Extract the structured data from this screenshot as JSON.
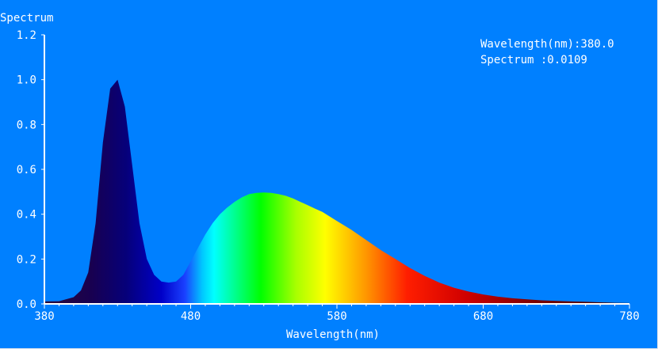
{
  "chart_data": {
    "type": "area",
    "title": "",
    "ylabel": "Spectrum",
    "xlabel": "Wavelength(nm)",
    "xlim": [
      380,
      780
    ],
    "ylim": [
      0,
      1.2
    ],
    "xticks": [
      "380",
      "480",
      "580",
      "680",
      "780"
    ],
    "yticks": [
      "0.0",
      "0.2",
      "0.4",
      "0.6",
      "0.8",
      "1.0",
      "1.2"
    ],
    "fill": "visible-spectrum gradient",
    "grid": false,
    "x": [
      380,
      390,
      400,
      405,
      410,
      415,
      420,
      425,
      430,
      435,
      440,
      445,
      450,
      455,
      460,
      465,
      470,
      475,
      480,
      485,
      490,
      495,
      500,
      505,
      510,
      515,
      520,
      525,
      530,
      535,
      540,
      545,
      550,
      555,
      560,
      565,
      570,
      575,
      580,
      590,
      600,
      610,
      620,
      630,
      640,
      650,
      660,
      670,
      680,
      690,
      700,
      710,
      720,
      730,
      740,
      750,
      760,
      770,
      780
    ],
    "y": [
      0.0109,
      0.012,
      0.03,
      0.06,
      0.14,
      0.36,
      0.72,
      0.96,
      1.0,
      0.88,
      0.62,
      0.36,
      0.2,
      0.13,
      0.1,
      0.095,
      0.1,
      0.13,
      0.19,
      0.25,
      0.31,
      0.36,
      0.4,
      0.43,
      0.455,
      0.475,
      0.49,
      0.495,
      0.497,
      0.495,
      0.49,
      0.482,
      0.47,
      0.455,
      0.44,
      0.425,
      0.41,
      0.39,
      0.37,
      0.33,
      0.285,
      0.24,
      0.2,
      0.16,
      0.125,
      0.095,
      0.072,
      0.055,
      0.042,
      0.032,
      0.025,
      0.02,
      0.016,
      0.013,
      0.011,
      0.009,
      0.007,
      0.005,
      0.004
    ]
  },
  "readout": {
    "wavelength": "Wavelength(nm):380.0",
    "spectrum": "Spectrum :0.0109"
  }
}
